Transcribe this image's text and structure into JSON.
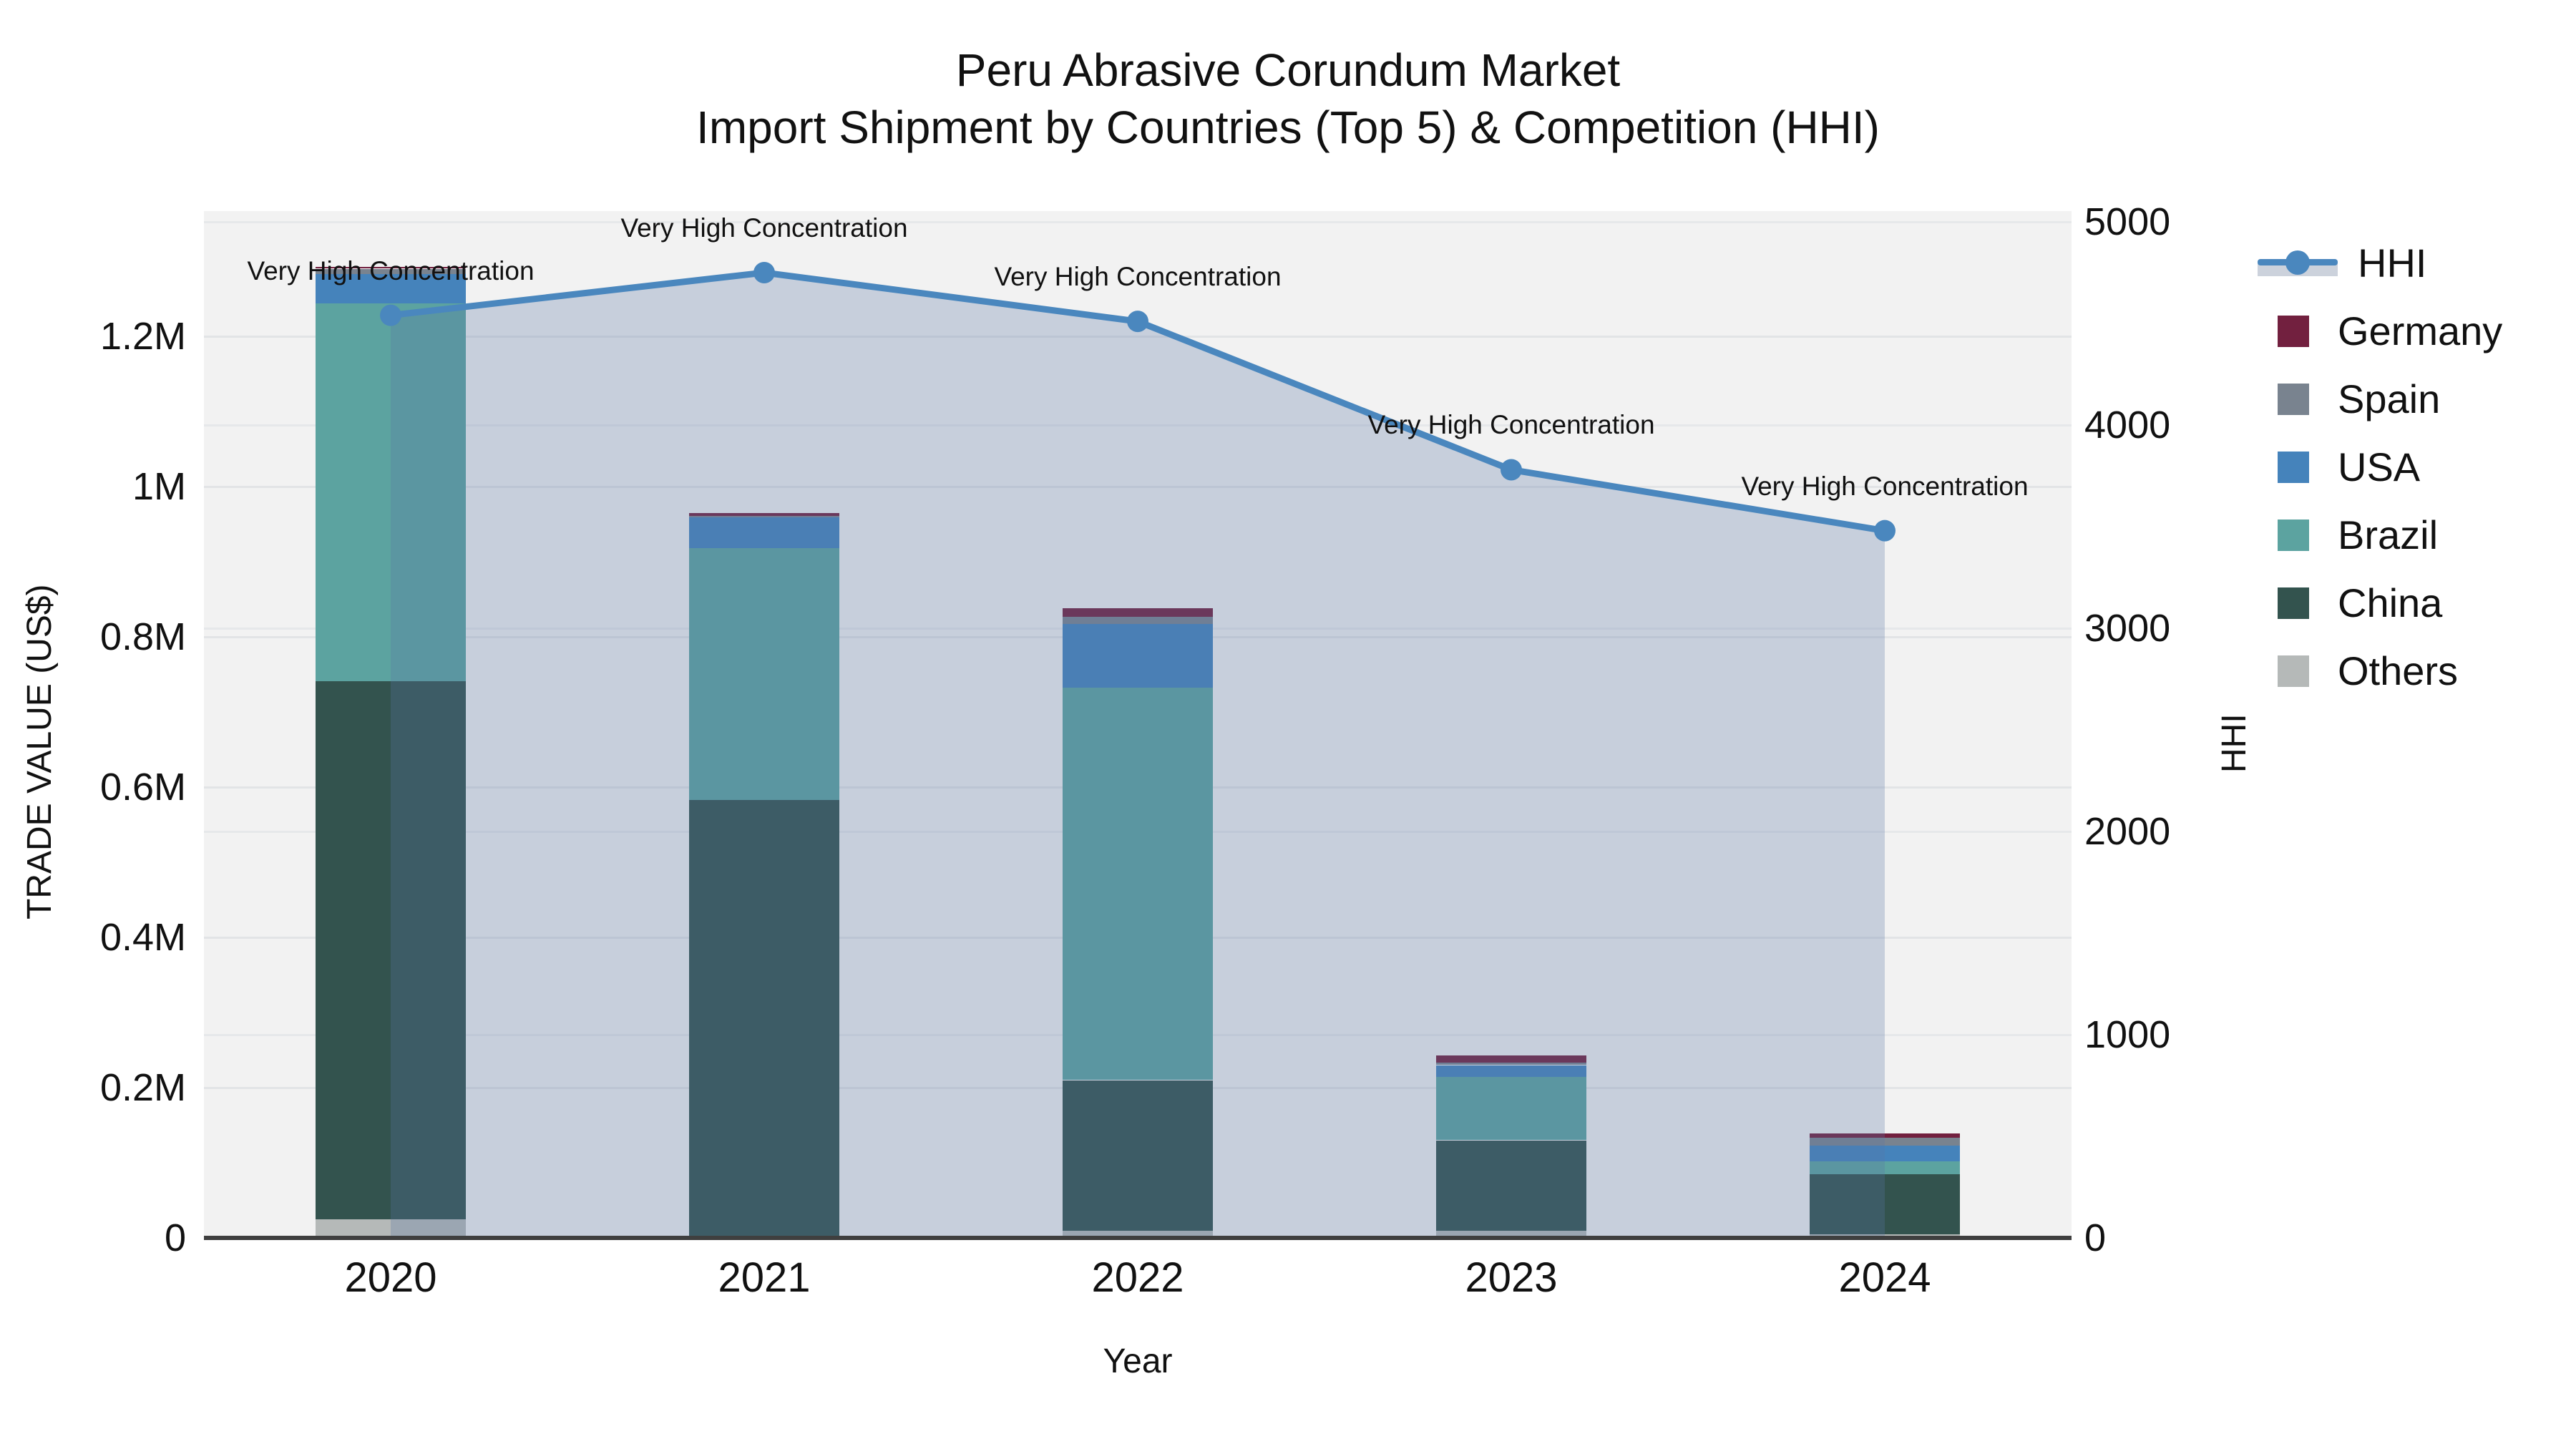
{
  "title": "Peru Abrasive Corundum Market",
  "subtitle": "Import Shipment by Countries (Top 5) & Competition (HHI)",
  "chart_data": {
    "type": "bar",
    "subtype": "stacked-bars-with-line",
    "categories": [
      "2020",
      "2021",
      "2022",
      "2023",
      "2024"
    ],
    "series": [
      {
        "name": "Germany",
        "color": "#72203F",
        "values": [
          2000,
          4000,
          11000,
          10000,
          6000
        ]
      },
      {
        "name": "Spain",
        "color": "#79838F",
        "values": [
          7000,
          2000,
          10000,
          3000,
          10000
        ]
      },
      {
        "name": "USA",
        "color": "#4583BB",
        "values": [
          39000,
          41000,
          85000,
          16000,
          21000
        ]
      },
      {
        "name": "Brazil",
        "color": "#5CA3A0",
        "values": [
          503000,
          335000,
          522000,
          84000,
          17000
        ]
      },
      {
        "name": "China",
        "color": "#33534E",
        "values": [
          716000,
          580000,
          200000,
          120000,
          80000
        ]
      },
      {
        "name": "Others",
        "color": "#B5B9B8",
        "values": [
          25000,
          3000,
          10000,
          10000,
          5000
        ]
      }
    ],
    "stack_order_bottom_to_top": [
      "Others",
      "China",
      "Brazil",
      "USA",
      "Spain",
      "Germany"
    ],
    "line": {
      "name": "HHI",
      "color": "#4A87BE",
      "fill_color": "rgba(90,120,165,0.28)",
      "values": [
        4540,
        4750,
        4510,
        3780,
        3480
      ]
    },
    "annotations": [
      {
        "year": "2020",
        "text": "Very High Concentration"
      },
      {
        "year": "2021",
        "text": "Very High Concentration"
      },
      {
        "year": "2022",
        "text": "Very High Concentration"
      },
      {
        "year": "2023",
        "text": "Very High Concentration"
      },
      {
        "year": "2024",
        "text": "Very High Concentration"
      }
    ],
    "left_axis": {
      "label": "TRADE VALUE (US$)",
      "ticks": [
        {
          "value": 0,
          "label": "0"
        },
        {
          "value": 200000,
          "label": "0.2M"
        },
        {
          "value": 400000,
          "label": "0.4M"
        },
        {
          "value": 600000,
          "label": "0.6M"
        },
        {
          "value": 800000,
          "label": "0.8M"
        },
        {
          "value": 1000000,
          "label": "1M"
        },
        {
          "value": 1200000,
          "label": "1.2M"
        }
      ]
    },
    "right_axis": {
      "label": "HHI",
      "ticks": [
        {
          "value": 0,
          "label": "0"
        },
        {
          "value": 1000,
          "label": "1000"
        },
        {
          "value": 2000,
          "label": "2000"
        },
        {
          "value": 3000,
          "label": "3000"
        },
        {
          "value": 4000,
          "label": "4000"
        },
        {
          "value": 5000,
          "label": "5000"
        }
      ]
    },
    "x_axis": {
      "label": "Year"
    },
    "legend": [
      {
        "name": "HHI",
        "kind": "line",
        "color": "#4A87BE"
      },
      {
        "name": "Germany",
        "kind": "square",
        "color": "#72203F"
      },
      {
        "name": "Spain",
        "kind": "square",
        "color": "#79838F"
      },
      {
        "name": "USA",
        "kind": "square",
        "color": "#4583BB"
      },
      {
        "name": "Brazil",
        "kind": "square",
        "color": "#5CA3A0"
      },
      {
        "name": "China",
        "kind": "square",
        "color": "#33534E"
      },
      {
        "name": "Others",
        "kind": "square",
        "color": "#B5B9B8"
      }
    ],
    "colors": {
      "plot_background": "#f2f2f2",
      "page_background": "#ffffff",
      "gridline": "#e3e5e7",
      "axis_line": "#3f3f3f",
      "text": "#111111"
    }
  }
}
